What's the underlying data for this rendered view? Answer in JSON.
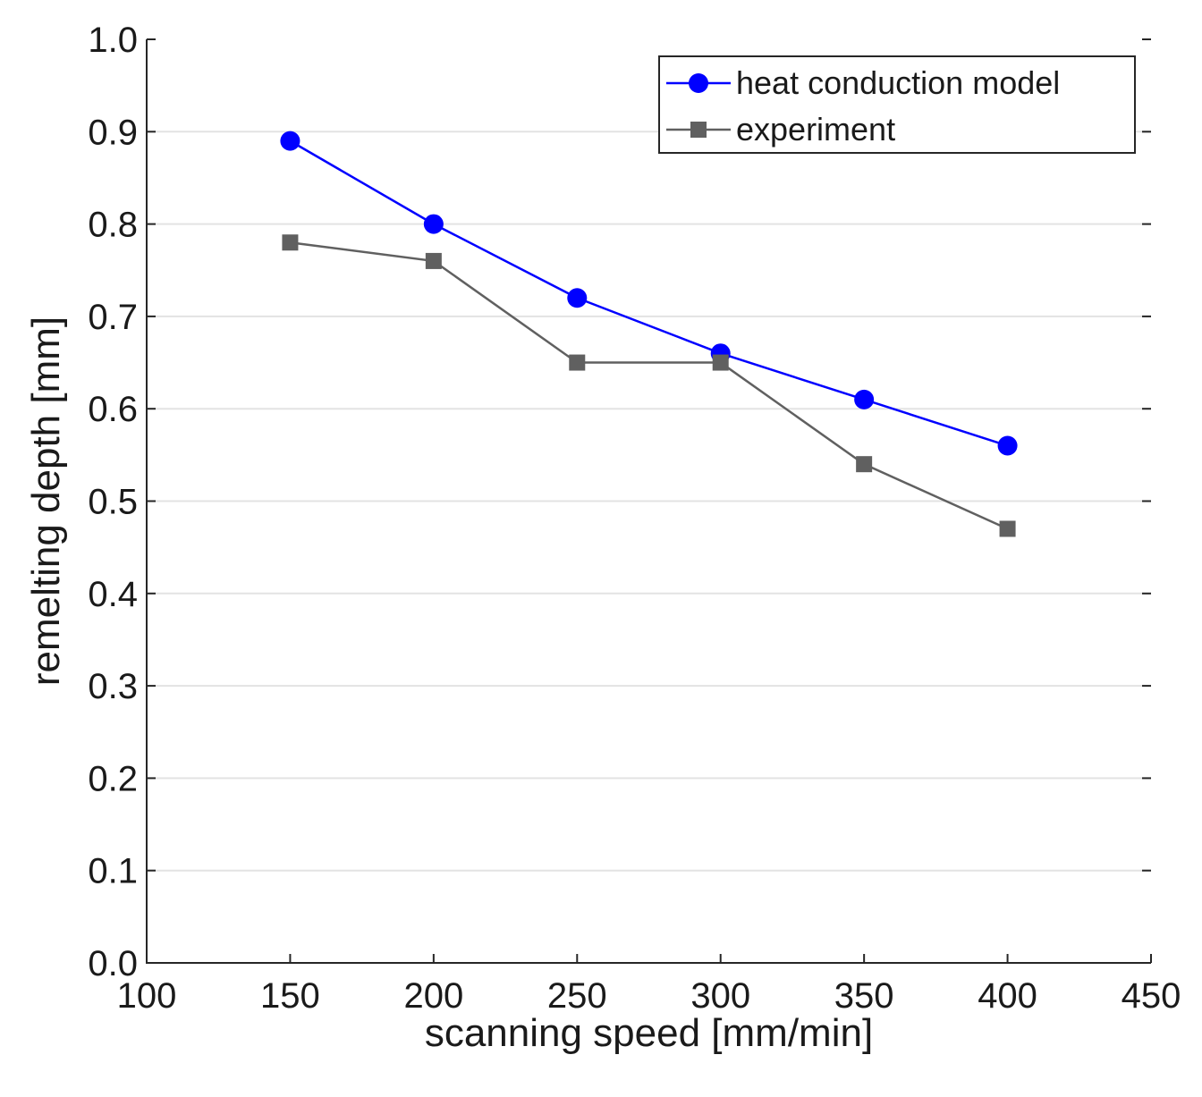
{
  "chart_data": {
    "type": "line",
    "title": "",
    "xlabel": "scanning speed [mm/min]",
    "ylabel": "remelting depth [mm]",
    "xlim": [
      100,
      450
    ],
    "ylim": [
      0.0,
      1.0
    ],
    "x_ticks": [
      100,
      150,
      200,
      250,
      300,
      350,
      400,
      450
    ],
    "x_tick_labels": [
      "100",
      "150",
      "200",
      "250",
      "300",
      "350",
      "400",
      "450"
    ],
    "y_ticks": [
      0.0,
      0.1,
      0.2,
      0.3,
      0.4,
      0.5,
      0.6,
      0.7,
      0.8,
      0.9,
      1.0
    ],
    "y_tick_labels": [
      "0.0",
      "0.1",
      "0.2",
      "0.3",
      "0.4",
      "0.5",
      "0.6",
      "0.7",
      "0.8",
      "0.9",
      "1.0"
    ],
    "grid": true,
    "legend_position": "top-right",
    "x": [
      150,
      200,
      250,
      300,
      350,
      400
    ],
    "series": [
      {
        "name": "heat conduction model",
        "values": [
          0.89,
          0.8,
          0.72,
          0.66,
          0.61,
          0.56
        ],
        "color": "#0000ff",
        "marker": "circle"
      },
      {
        "name": "experiment",
        "values": [
          0.78,
          0.76,
          0.65,
          0.65,
          0.54,
          0.47
        ],
        "color": "#606060",
        "marker": "square"
      }
    ]
  }
}
